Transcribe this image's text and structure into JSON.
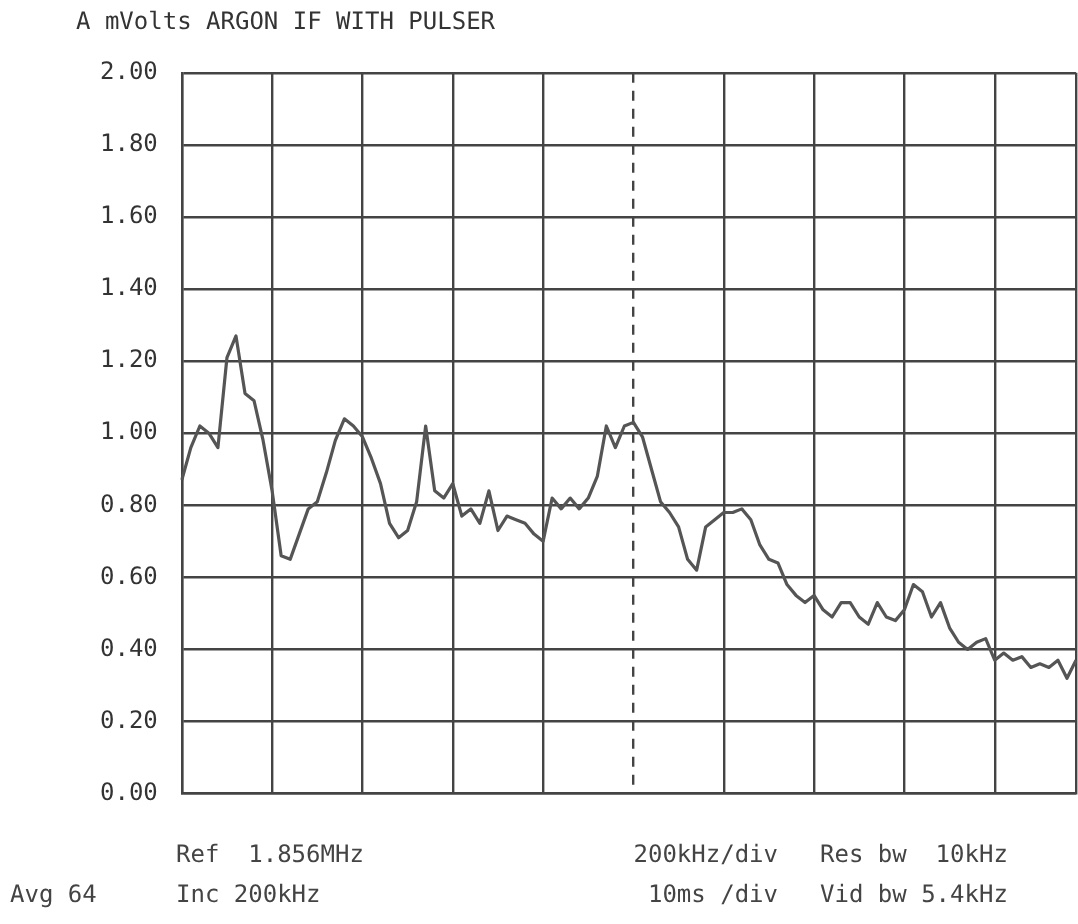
{
  "chart_data": {
    "type": "line",
    "title": "A mVolts ARGON IF WITH PULSER",
    "categories": [
      null,
      null,
      null,
      null,
      null,
      null,
      null,
      null,
      null,
      null,
      null,
      null,
      null,
      null,
      null,
      null,
      null,
      null,
      null,
      null,
      null,
      null,
      null,
      null,
      null,
      null,
      null,
      null,
      null,
      null,
      null,
      null,
      null,
      null,
      null,
      null,
      null,
      null,
      null,
      null,
      null,
      null,
      null,
      null,
      null,
      null,
      null,
      null,
      null,
      null,
      null,
      null,
      null,
      null,
      null,
      null,
      null,
      null,
      null,
      null,
      null,
      null,
      null,
      null,
      null,
      null,
      null,
      null,
      null,
      null,
      null,
      null,
      null,
      null,
      null,
      null,
      null,
      null,
      null,
      null,
      null,
      null,
      null,
      null,
      null,
      null,
      null,
      null,
      null,
      null,
      null,
      null,
      null,
      null,
      null,
      null,
      null,
      null,
      null,
      null
    ],
    "series": [
      {
        "color": "#555555",
        "values": [
          0.87,
          0.96,
          1.02,
          1.0,
          0.96,
          1.21,
          1.27,
          1.11,
          1.09,
          0.98,
          0.84,
          0.66,
          0.65,
          0.72,
          0.79,
          0.81,
          0.89,
          0.98,
          1.04,
          1.02,
          0.99,
          0.93,
          0.86,
          0.75,
          0.71,
          0.73,
          0.81,
          1.02,
          0.84,
          0.82,
          0.86,
          0.77,
          0.79,
          0.75,
          0.84,
          0.73,
          0.77,
          0.76,
          0.75,
          0.72,
          0.7,
          0.82,
          0.79,
          0.82,
          0.79,
          0.82,
          0.88,
          1.02,
          0.96,
          1.02,
          1.03,
          0.99,
          0.9,
          0.81,
          0.78,
          0.74,
          0.65,
          0.62,
          0.74,
          0.76,
          0.78,
          0.78,
          0.79,
          0.76,
          0.69,
          0.65,
          0.64,
          0.58,
          0.55,
          0.53,
          0.55,
          0.51,
          0.49,
          0.53,
          0.53,
          0.49,
          0.47,
          0.53,
          0.49,
          0.48,
          0.51,
          0.58,
          0.56,
          0.49,
          0.53,
          0.46,
          0.42,
          0.4,
          0.42,
          0.43,
          0.37,
          0.39,
          0.37,
          0.38,
          0.35,
          0.36,
          0.35,
          0.37,
          0.32,
          0.37
        ]
      }
    ],
    "ylim": [
      0,
      2
    ],
    "yticks": [
      {
        "value": 0,
        "label": "0.00"
      },
      {
        "value": 0.2,
        "label": "0.20"
      },
      {
        "value": 0.4,
        "label": "0.40"
      },
      {
        "value": 0.6,
        "label": "0.60"
      },
      {
        "value": 0.8,
        "label": "0.80"
      },
      {
        "value": 1,
        "label": "1.00"
      },
      {
        "value": 1.2,
        "label": "1.20"
      },
      {
        "value": 1.4,
        "label": "1.40"
      },
      {
        "value": 1.6,
        "label": "1.60"
      },
      {
        "value": 1.8,
        "label": "1.80"
      },
      {
        "value": 2,
        "label": "2.00"
      }
    ],
    "grid": true,
    "legend": false,
    "marker": "none",
    "line_style": "solid",
    "annotations": [
      "Ref  1.856MHz",
      "200kHz/div",
      "Res bw  10kHz",
      "Avg 64",
      "Inc 200kHz",
      "10ms /div",
      "Vid bw 5.4kHz"
    ]
  }
}
